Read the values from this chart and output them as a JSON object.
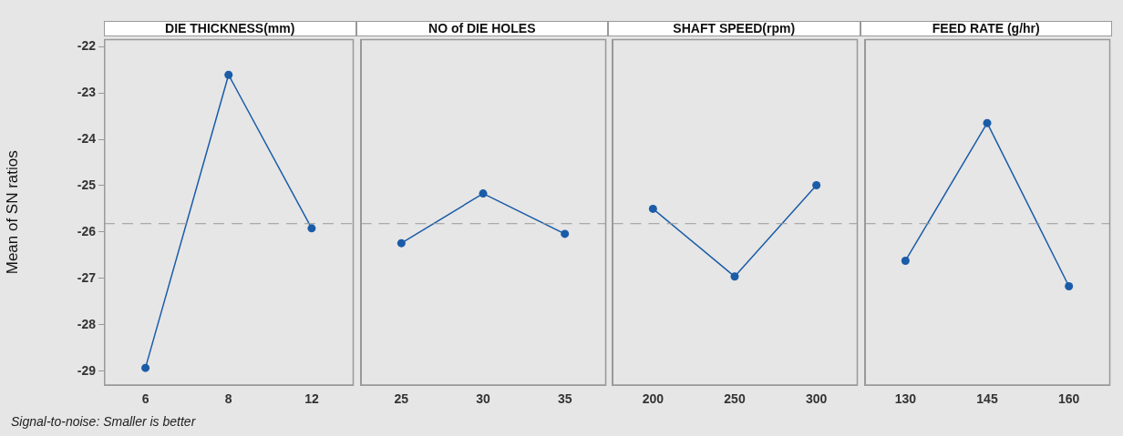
{
  "chart_data": [
    {
      "type": "line",
      "title": "DIE THICKNESS(mm)",
      "ylabel": "Mean of SN ratios",
      "categories": [
        "6",
        "8",
        "12"
      ],
      "values": [
        -28.93,
        -22.61,
        -25.92
      ],
      "color": "#1a5ca8",
      "marker": "circle",
      "ylim": [
        -29.3,
        -21.85
      ],
      "yticks": [
        -29,
        -28,
        -27,
        -26,
        -25,
        -24,
        -23,
        -22
      ],
      "ref_lines": [
        {
          "axis": "y",
          "value": -25.82,
          "color": "#999999",
          "line_style": "dashed"
        }
      ],
      "grid": false,
      "annotations": [
        "Signal-to-noise: Smaller is better"
      ]
    },
    {
      "type": "line",
      "title": "NO of DIE HOLES",
      "categories": [
        "25",
        "30",
        "35"
      ],
      "values": [
        -26.24,
        -25.17,
        -26.04
      ],
      "color": "#1a5ca8",
      "marker": "circle",
      "ylim": [
        -29.3,
        -21.85
      ],
      "tick_labels": "x",
      "ref_lines": [
        {
          "axis": "y",
          "value": -25.82,
          "color": "#999999",
          "line_style": "dashed"
        }
      ],
      "grid": false
    },
    {
      "type": "line",
      "title": "SHAFT SPEED(rpm)",
      "categories": [
        "200",
        "250",
        "300"
      ],
      "values": [
        -25.5,
        -26.96,
        -24.99
      ],
      "color": "#1a5ca8",
      "marker": "circle",
      "ylim": [
        -29.3,
        -21.85
      ],
      "tick_labels": "x",
      "ref_lines": [
        {
          "axis": "y",
          "value": -25.82,
          "color": "#999999",
          "line_style": "dashed"
        }
      ],
      "grid": false
    },
    {
      "type": "line",
      "title": "FEED RATE (g/hr)",
      "categories": [
        "130",
        "145",
        "160"
      ],
      "values": [
        -26.62,
        -23.65,
        -27.17
      ],
      "color": "#1a5ca8",
      "marker": "circle",
      "ylim": [
        -29.3,
        -21.85
      ],
      "tick_labels": "x",
      "ref_lines": [
        {
          "axis": "y",
          "value": -25.82,
          "color": "#999999",
          "line_style": "dashed"
        }
      ],
      "grid": false
    }
  ]
}
